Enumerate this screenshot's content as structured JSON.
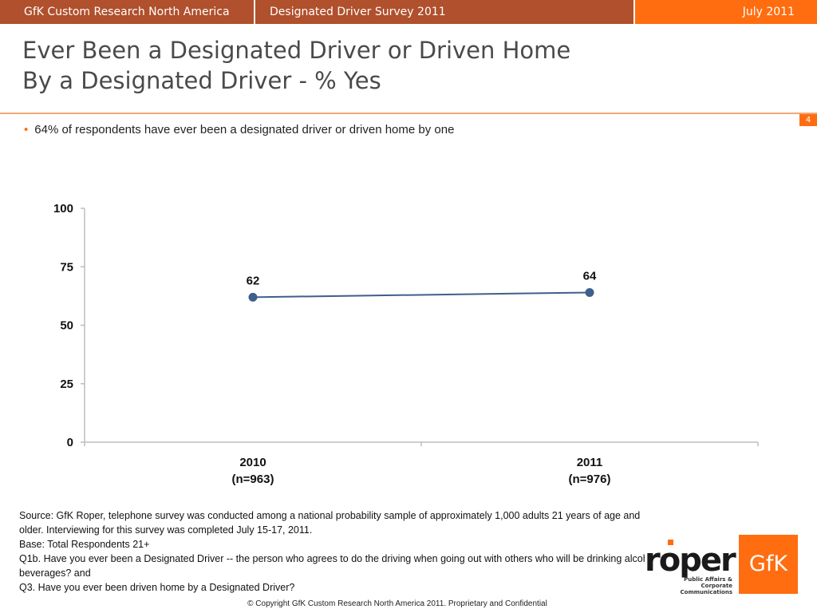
{
  "header": {
    "org": "GfK Custom Research North America",
    "survey": "Designated Driver Survey 2011",
    "date": "July 2011"
  },
  "title": {
    "line1": "Ever Been a Designated Driver or Driven Home",
    "line2": "By a Designated Driver - % Yes"
  },
  "page_number": "4",
  "bullet": "64% of respondents have ever been a designated driver or driven home by one",
  "chart_data": {
    "type": "line",
    "categories": [
      "2010\n(n=963)",
      "2011\n(n=976)"
    ],
    "category_lines": [
      [
        "2010",
        "(n=963)"
      ],
      [
        "2011",
        "(n=976)"
      ]
    ],
    "series": [
      {
        "values": [
          62,
          64
        ],
        "data_labels": [
          "62",
          "64"
        ]
      }
    ],
    "ylim": [
      0,
      100
    ],
    "yticks": [
      0,
      25,
      50,
      75,
      100
    ],
    "ytick_labels": [
      "0",
      "25",
      "50",
      "75",
      "100"
    ],
    "grid": false,
    "line_color": "#3d5f8c",
    "axis_color": "#bdbdbd"
  },
  "notes": {
    "source": "Source: GfK Roper, telephone survey was conducted among a national probability sample of approximately 1,000 adults 21 years of age and older.  Interviewing for this survey was completed July 15-17, 2011.",
    "base": "Base: Total Respondents 21+",
    "q1b": "Q1b. Have you ever been a Designated Driver -- the person who agrees to do the driving when going out with others who will be drinking alcohol beverages? and",
    "q3": "Q3. Have you ever been driven home by a Designated Driver?"
  },
  "copyright": "© Copyright GfK Custom Research North America 2011.  Proprietary and Confidential",
  "logos": {
    "roper_word": "roper",
    "roper_tag": "Public Affairs & Corporate Communications",
    "gfk": "GfK"
  },
  "colors": {
    "brand_dark": "#b0502c",
    "brand_orange": "#ff6d10"
  }
}
